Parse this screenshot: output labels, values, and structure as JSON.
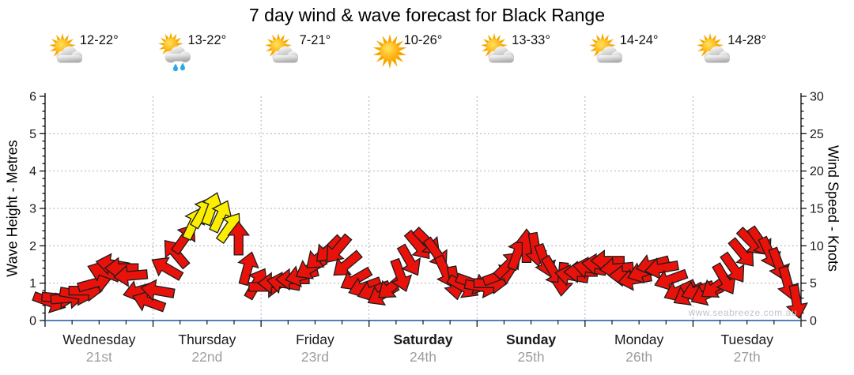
{
  "title": "7 day wind & wave forecast for Black Range",
  "watermark": "www.seabreeze.com.au",
  "colors": {
    "arrow_red": "#e8120b",
    "arrow_yellow": "#fcee00",
    "arrow_outline": "#1c1c1c",
    "bottom_axis_blue": "#4f81bd",
    "grid_gray": "#b0b0b0",
    "date_gray": "#9e9e9e",
    "day_label": "#1a1a1a",
    "watermark_gray": "#c4c4c4"
  },
  "days": [
    {
      "name": "Wednesday",
      "date": "21st",
      "temp": "12-22°",
      "icon": "partly-cloudy",
      "bold": false
    },
    {
      "name": "Thursday",
      "date": "22nd",
      "temp": "13-22°",
      "icon": "partly-cloudy-showers",
      "bold": false
    },
    {
      "name": "Friday",
      "date": "23rd",
      "temp": "7-21°",
      "icon": "partly-cloudy",
      "bold": false
    },
    {
      "name": "Saturday",
      "date": "24th",
      "temp": "10-26°",
      "icon": "sunny",
      "bold": true
    },
    {
      "name": "Sunday",
      "date": "25th",
      "temp": "13-33°",
      "icon": "partly-cloudy",
      "bold": true
    },
    {
      "name": "Monday",
      "date": "26th",
      "temp": "14-24°",
      "icon": "partly-cloudy",
      "bold": false
    },
    {
      "name": "Tuesday",
      "date": "27th",
      "temp": "14-28°",
      "icon": "partly-cloudy",
      "bold": false
    }
  ],
  "chart_data": {
    "type": "wind-arrow-timeseries",
    "title": "7 day wind & wave forecast for Black Range",
    "left_axis": {
      "label": "Wave Height - Metres",
      "min": 0,
      "max": 6,
      "major_step": 1,
      "minor_step": 0.2
    },
    "right_axis": {
      "label": "Wind Speed - Knots",
      "min": 0,
      "max": 30,
      "major_step": 5,
      "minor_step": 1
    },
    "gridlines_knots": [
      5,
      10,
      15,
      20,
      25
    ],
    "x_days": [
      "Wednesday 21st",
      "Thursday 22nd",
      "Friday 23rd",
      "Saturday 24th",
      "Sunday 25th",
      "Monday 26th",
      "Tuesday 27th"
    ],
    "arrows_per_day": 12,
    "arrow_format": [
      "wind_speed_knots",
      "direction_deg_pointing",
      "color(r=red,y=yellow)"
    ],
    "arrows": [
      [
        2.5,
        110,
        "r"
      ],
      [
        3,
        95,
        "r"
      ],
      [
        3,
        85,
        "r"
      ],
      [
        3.5,
        100,
        "r"
      ],
      [
        4,
        90,
        "r"
      ],
      [
        5,
        75,
        "r"
      ],
      [
        6.5,
        290,
        "r"
      ],
      [
        7.5,
        280,
        "r"
      ],
      [
        7,
        270,
        "r"
      ],
      [
        6,
        265,
        "r"
      ],
      [
        4,
        255,
        "r"
      ],
      [
        2.5,
        290,
        "r"
      ],
      [
        4,
        280,
        "r"
      ],
      [
        7,
        300,
        "r"
      ],
      [
        9,
        320,
        "r"
      ],
      [
        11,
        35,
        "r"
      ],
      [
        13,
        25,
        "y"
      ],
      [
        14.5,
        30,
        "y"
      ],
      [
        15,
        20,
        "y"
      ],
      [
        14,
        25,
        "y"
      ],
      [
        12.5,
        35,
        "y"
      ],
      [
        11,
        0,
        "r"
      ],
      [
        7,
        15,
        "r"
      ],
      [
        5,
        30,
        "r"
      ],
      [
        4.5,
        90,
        "r"
      ],
      [
        5,
        270,
        "r"
      ],
      [
        5,
        280,
        "r"
      ],
      [
        5.5,
        270,
        "r"
      ],
      [
        6,
        255,
        "r"
      ],
      [
        7,
        240,
        "r"
      ],
      [
        8.5,
        230,
        "r"
      ],
      [
        9.5,
        225,
        "r"
      ],
      [
        9.5,
        220,
        "r"
      ],
      [
        7.5,
        230,
        "r"
      ],
      [
        5.5,
        240,
        "r"
      ],
      [
        4.5,
        250,
        "r"
      ],
      [
        4,
        250,
        "r"
      ],
      [
        3.5,
        240,
        "r"
      ],
      [
        4.5,
        230,
        "r"
      ],
      [
        6,
        160,
        "r"
      ],
      [
        8,
        150,
        "r"
      ],
      [
        10,
        140,
        "r"
      ],
      [
        10.5,
        135,
        "r"
      ],
      [
        9,
        145,
        "r"
      ],
      [
        6.5,
        155,
        "r"
      ],
      [
        5,
        170,
        "r"
      ],
      [
        4.5,
        120,
        "r"
      ],
      [
        5,
        110,
        "r"
      ],
      [
        4.5,
        100,
        "r"
      ],
      [
        5,
        90,
        "r"
      ],
      [
        6,
        70,
        "r"
      ],
      [
        7.5,
        45,
        "r"
      ],
      [
        9,
        20,
        "r"
      ],
      [
        10,
        0,
        "r"
      ],
      [
        9.5,
        170,
        "r"
      ],
      [
        8,
        160,
        "r"
      ],
      [
        6.5,
        150,
        "r"
      ],
      [
        5.5,
        185,
        "r"
      ],
      [
        6,
        280,
        "r"
      ],
      [
        6.5,
        270,
        "r"
      ],
      [
        7,
        280,
        "r"
      ],
      [
        7.5,
        275,
        "r"
      ],
      [
        8,
        270,
        "r"
      ],
      [
        7,
        265,
        "r"
      ],
      [
        6,
        270,
        "r"
      ],
      [
        5.5,
        260,
        "r"
      ],
      [
        6.5,
        250,
        "r"
      ],
      [
        7.5,
        255,
        "r"
      ],
      [
        7,
        260,
        "r"
      ],
      [
        5.5,
        250,
        "r"
      ],
      [
        4,
        245,
        "r"
      ],
      [
        3.5,
        240,
        "r"
      ],
      [
        4,
        250,
        "r"
      ],
      [
        3.5,
        245,
        "r"
      ],
      [
        4.5,
        235,
        "r"
      ],
      [
        5.5,
        150,
        "r"
      ],
      [
        7,
        145,
        "r"
      ],
      [
        9,
        140,
        "r"
      ],
      [
        10.5,
        135,
        "r"
      ],
      [
        10.5,
        145,
        "r"
      ],
      [
        9,
        155,
        "r"
      ],
      [
        7.5,
        160,
        "r"
      ],
      [
        5,
        165,
        "r"
      ],
      [
        2.5,
        170,
        "r"
      ]
    ]
  }
}
